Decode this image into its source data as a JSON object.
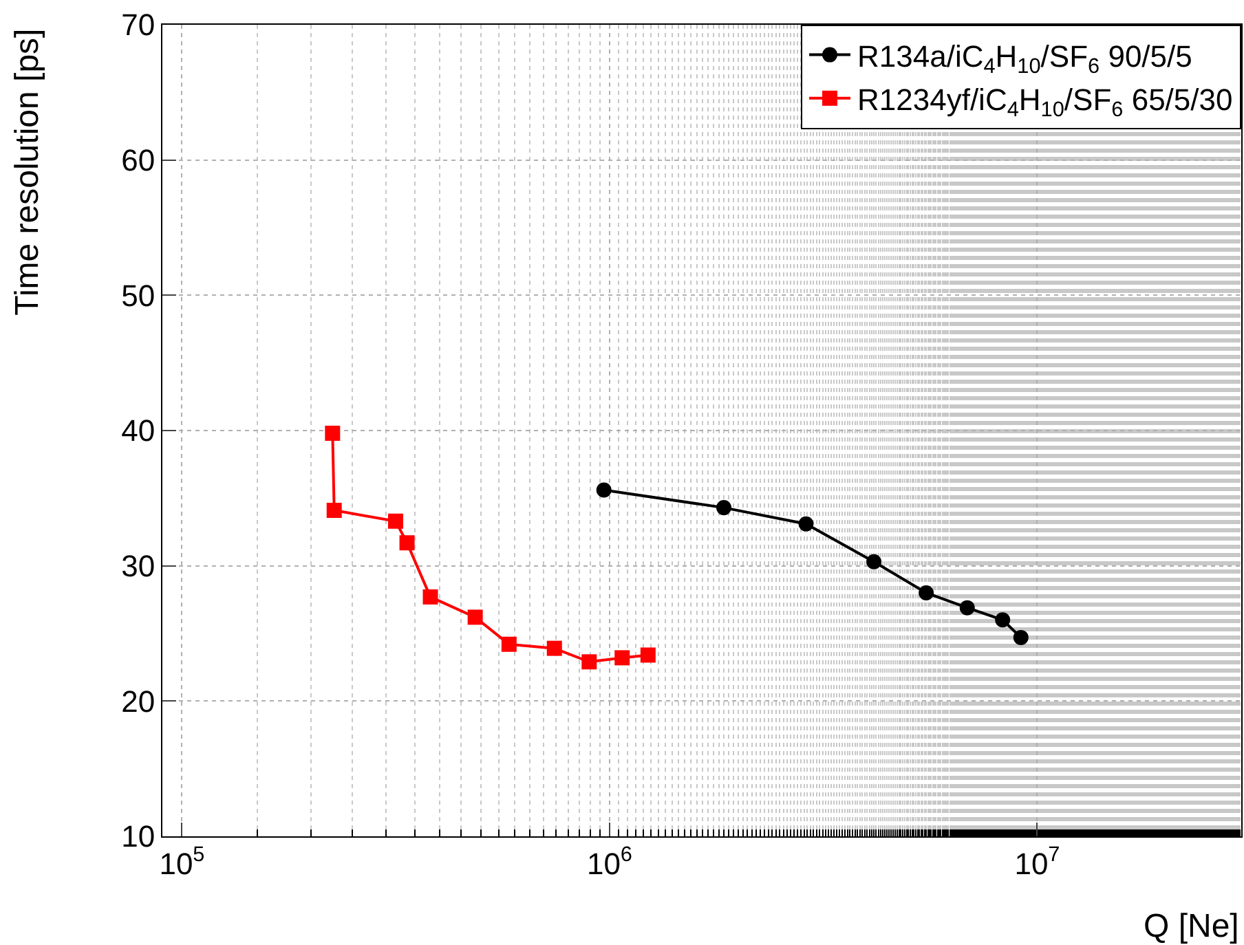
{
  "chart_data": {
    "type": "line",
    "xlabel": "Q [Ne]",
    "ylabel": "Time resolution [ps]",
    "log": "x",
    "xlim": [
      90000,
      30000000
    ],
    "ylim": [
      10,
      70
    ],
    "xticks": [
      {
        "value": 100000,
        "label": "10$^{5}$"
      },
      {
        "value": 1000000,
        "label": "10$^{6}$"
      },
      {
        "value": 10000000,
        "label": "10$^{7}$"
      }
    ],
    "yticks": [
      10,
      20,
      30,
      40,
      50,
      60,
      70
    ],
    "grid": true,
    "legend": "top right",
    "line_style": "solid",
    "series": [
      {
        "name": "R134a/iC$_{4}$H$_{10}$/SF$_{6}$ 90/5/5",
        "color": "#000000",
        "marker": "circle",
        "x": [
          970000,
          1850000,
          2880000,
          4150000,
          5500000,
          6860000,
          8300000,
          9160000
        ],
        "values": [
          35.6,
          34.3,
          33.1,
          30.3,
          28.0,
          26.9,
          26.0,
          24.7
        ]
      },
      {
        "name": "R1234yf/iC$_{4}$H$_{10}$/SF$_{6}$ 65/5/30",
        "color": "#ff0000",
        "marker": "square",
        "x": [
          225000,
          227000,
          316000,
          336000,
          381000,
          485000,
          582000,
          743000,
          896000,
          1070000,
          1230000
        ],
        "values": [
          39.8,
          34.1,
          33.3,
          31.7,
          27.7,
          26.2,
          24.2,
          23.9,
          22.9,
          23.2,
          23.4
        ]
      }
    ]
  }
}
